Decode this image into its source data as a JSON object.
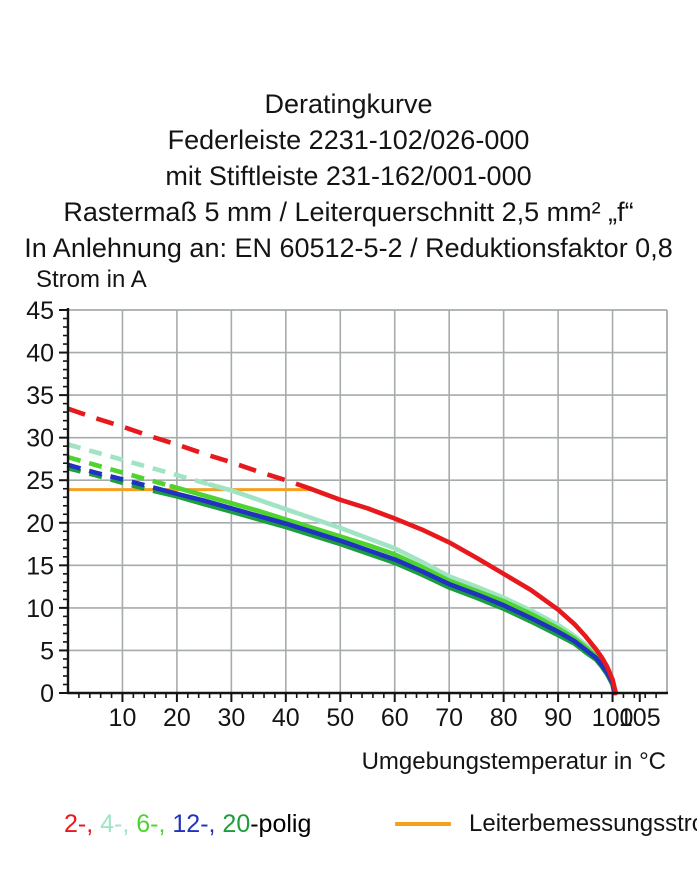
{
  "header": {
    "lines": [
      "Deratingkurve",
      "Federleiste 2231-102/026-000",
      "mit Stiftleiste 231-162/001-000",
      "Rastermaß 5 mm / Leiterquerschnitt 2,5 mm² „f“",
      "In Anlehnung an: EN 60512-5-2 / Reduktionsfaktor 0,8"
    ]
  },
  "legend": {
    "series_segments": [
      {
        "text": "2-,",
        "color": "#e8191d"
      },
      {
        "text": " 4-,",
        "color": "#a0e4c3"
      },
      {
        "text": " 6-,",
        "color": "#4fd32f"
      },
      {
        "text": " 12-,",
        "color": "#2032c0"
      },
      {
        "text": " 20",
        "color": "#1d9e3d"
      },
      {
        "text": "-polig",
        "color": "#000000"
      }
    ],
    "reference_label": "Leiterbemessungsstrom"
  },
  "chart_data": {
    "type": "line",
    "title": "Deratingkurve",
    "xlabel": "Umgebungstemperatur in °C",
    "ylabel": "Strom in A",
    "xlim": [
      0,
      110
    ],
    "ylim": [
      0,
      45
    ],
    "x_major_ticks": [
      10,
      20,
      30,
      40,
      50,
      60,
      70,
      80,
      90,
      100,
      105
    ],
    "x_minor_step": 2,
    "y_major_ticks": [
      0,
      5,
      10,
      15,
      20,
      25,
      30,
      35,
      40,
      45
    ],
    "y_minor_step": 1,
    "grid": {
      "x_step": 10,
      "y_step": 5,
      "color": "#a6abab",
      "frame": true
    },
    "axis_color": "#141414",
    "series": [
      {
        "name": "2-polig",
        "color": "#e8191d",
        "dash_until": 44.5,
        "dash": "18 12",
        "points": [
          [
            0,
            33.4
          ],
          [
            5,
            32.3
          ],
          [
            10,
            31.3
          ],
          [
            15,
            30.2
          ],
          [
            20,
            29.2
          ],
          [
            25,
            28.1
          ],
          [
            30,
            27.1
          ],
          [
            35,
            26.0
          ],
          [
            40,
            25.0
          ],
          [
            44.5,
            24.0
          ],
          [
            50,
            22.7
          ],
          [
            55,
            21.7
          ],
          [
            60,
            20.5
          ],
          [
            65,
            19.2
          ],
          [
            70,
            17.7
          ],
          [
            75,
            15.9
          ],
          [
            80,
            14.0
          ],
          [
            85,
            12.1
          ],
          [
            90,
            9.8
          ],
          [
            93,
            8.1
          ],
          [
            95,
            6.7
          ],
          [
            97,
            5.1
          ],
          [
            98,
            4.2
          ],
          [
            99,
            3.1
          ],
          [
            100,
            1.6
          ],
          [
            100.6,
            0
          ]
        ]
      },
      {
        "name": "4-polig",
        "color": "#a0e4c3",
        "dash_until": 26,
        "dash": "13 9",
        "points": [
          [
            0,
            29.2
          ],
          [
            5,
            28.3
          ],
          [
            10,
            27.4
          ],
          [
            15,
            26.5
          ],
          [
            20,
            25.6
          ],
          [
            26,
            24.5
          ],
          [
            30,
            23.8
          ],
          [
            35,
            22.7
          ],
          [
            40,
            21.6
          ],
          [
            45,
            20.5
          ],
          [
            50,
            19.4
          ],
          [
            55,
            18.2
          ],
          [
            60,
            17.0
          ],
          [
            65,
            15.4
          ],
          [
            70,
            13.7
          ],
          [
            75,
            12.5
          ],
          [
            80,
            11.2
          ],
          [
            85,
            9.7
          ],
          [
            90,
            8.0
          ],
          [
            93,
            6.7
          ],
          [
            95,
            5.7
          ],
          [
            97,
            4.5
          ],
          [
            98,
            3.7
          ],
          [
            99,
            2.7
          ],
          [
            100,
            1.4
          ],
          [
            100.6,
            0
          ]
        ]
      },
      {
        "name": "6-polig",
        "color": "#4fd32f",
        "dash_until": 19,
        "dash": "13 9",
        "points": [
          [
            0,
            27.7
          ],
          [
            5,
            26.8
          ],
          [
            10,
            25.9
          ],
          [
            15,
            25.0
          ],
          [
            19,
            24.3
          ],
          [
            25,
            23.2
          ],
          [
            30,
            22.3
          ],
          [
            35,
            21.4
          ],
          [
            40,
            20.4
          ],
          [
            45,
            19.4
          ],
          [
            50,
            18.4
          ],
          [
            55,
            17.4
          ],
          [
            60,
            16.3
          ],
          [
            65,
            14.8
          ],
          [
            70,
            13.2
          ],
          [
            75,
            12.0
          ],
          [
            80,
            10.8
          ],
          [
            85,
            9.3
          ],
          [
            90,
            7.6
          ],
          [
            93,
            6.4
          ],
          [
            95,
            5.4
          ],
          [
            97,
            4.3
          ],
          [
            98,
            3.5
          ],
          [
            99,
            2.6
          ],
          [
            100,
            1.3
          ],
          [
            100.5,
            0
          ]
        ]
      },
      {
        "name": "12-polig",
        "color": "#2032c0",
        "dash_until": 16.5,
        "dash": "13 9",
        "points": [
          [
            0,
            26.8
          ],
          [
            5,
            25.9
          ],
          [
            10,
            25.1
          ],
          [
            16.5,
            24.0
          ],
          [
            20,
            23.4
          ],
          [
            25,
            22.6
          ],
          [
            30,
            21.7
          ],
          [
            35,
            20.8
          ],
          [
            40,
            19.9
          ],
          [
            45,
            18.9
          ],
          [
            50,
            17.9
          ],
          [
            55,
            16.8
          ],
          [
            60,
            15.7
          ],
          [
            65,
            14.3
          ],
          [
            70,
            12.8
          ],
          [
            75,
            11.6
          ],
          [
            80,
            10.3
          ],
          [
            85,
            8.8
          ],
          [
            90,
            7.2
          ],
          [
            93,
            6.1
          ],
          [
            95,
            5.1
          ],
          [
            97,
            4.1
          ],
          [
            98,
            3.3
          ],
          [
            99,
            2.4
          ],
          [
            100,
            1.2
          ],
          [
            100.4,
            0
          ]
        ]
      },
      {
        "name": "20-polig",
        "color": "#1d9e3d",
        "dash_until": 16,
        "dash": "13 9",
        "points": [
          [
            0,
            26.4
          ],
          [
            5,
            25.6
          ],
          [
            10,
            24.7
          ],
          [
            16,
            23.7
          ],
          [
            20,
            23.1
          ],
          [
            25,
            22.2
          ],
          [
            30,
            21.3
          ],
          [
            35,
            20.4
          ],
          [
            40,
            19.5
          ],
          [
            45,
            18.5
          ],
          [
            50,
            17.5
          ],
          [
            55,
            16.4
          ],
          [
            60,
            15.3
          ],
          [
            65,
            13.9
          ],
          [
            70,
            12.4
          ],
          [
            75,
            11.2
          ],
          [
            80,
            9.9
          ],
          [
            85,
            8.4
          ],
          [
            90,
            6.8
          ],
          [
            93,
            5.8
          ],
          [
            95,
            4.8
          ],
          [
            97,
            3.9
          ],
          [
            98,
            3.1
          ],
          [
            99,
            2.2
          ],
          [
            100,
            1.0
          ],
          [
            100.3,
            0
          ]
        ]
      }
    ],
    "draw_order": [
      1,
      2,
      4,
      3,
      0
    ],
    "reference_line": {
      "label": "Leiterbemessungsstrom",
      "color": "#f5a01e",
      "y": 23.9,
      "x_start": 0,
      "x_end": 45
    },
    "legend_position": "bottom"
  }
}
